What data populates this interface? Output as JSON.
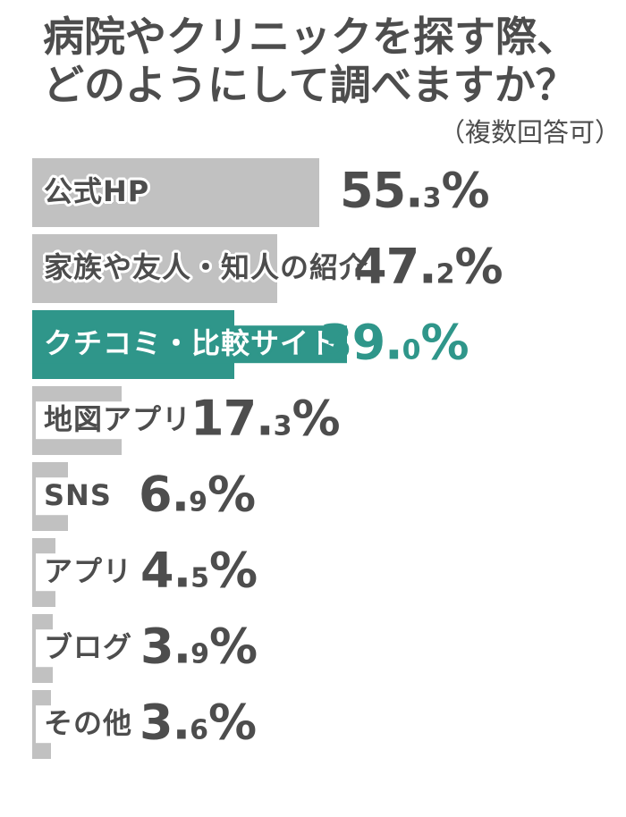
{
  "title": {
    "line1": "病院やクリニックを探す際、",
    "line2": "どのようにして調べますか？",
    "note": "（複数回答可）"
  },
  "chart_data": {
    "type": "bar",
    "orientation": "horizontal",
    "title": "病院やクリニックを探す際、どのようにして調べますか？",
    "subtitle": "（複数回答可）",
    "categories": [
      "公式HP",
      "家族や友人・知人の紹介",
      "クチコミ・比較サイト",
      "地図アプリ",
      "SNS",
      "アプリ",
      "ブログ",
      "その他"
    ],
    "values": [
      55.3,
      47.2,
      39.0,
      17.3,
      6.9,
      4.5,
      3.9,
      3.6
    ],
    "unit": "%",
    "value_labels": [
      "55.3%",
      "47.2%",
      "39.0%",
      "17.3%",
      "6.9%",
      "4.5%",
      "3.9%",
      "3.6%"
    ],
    "highlight_index": 2,
    "xlim": [
      0,
      60
    ],
    "grid": false,
    "legend": false,
    "colors": {
      "bar": "#c1c1c1",
      "bar_highlight": "#2f968a",
      "text": "#4d4d4d",
      "text_highlight": "#2f968a",
      "background": "#ffffff"
    }
  }
}
